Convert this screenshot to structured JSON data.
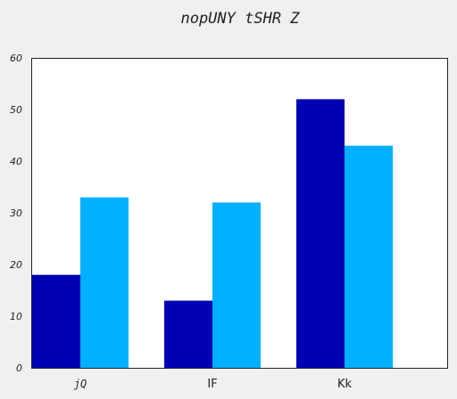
{
  "chart_data": {
    "type": "bar",
    "title": "nopUNY tSHR  Z",
    "xlabel": "",
    "ylabel": "",
    "categories": [
      "jQ",
      "IF",
      "Kk"
    ],
    "series": [
      {
        "values": [
          18,
          13,
          52
        ],
        "color": "#0000b4"
      },
      {
        "values": [
          33,
          32,
          43
        ],
        "color": "#00b0ff"
      }
    ],
    "ylim": [
      0,
      60
    ],
    "yticks": [
      "0",
      "10",
      "20",
      "30",
      "40",
      "50",
      "60"
    ],
    "grid": false,
    "legend": "none"
  },
  "colors": {
    "background": "#f0f0f0",
    "plot_background": "#ffffff",
    "axis": "#222222"
  }
}
